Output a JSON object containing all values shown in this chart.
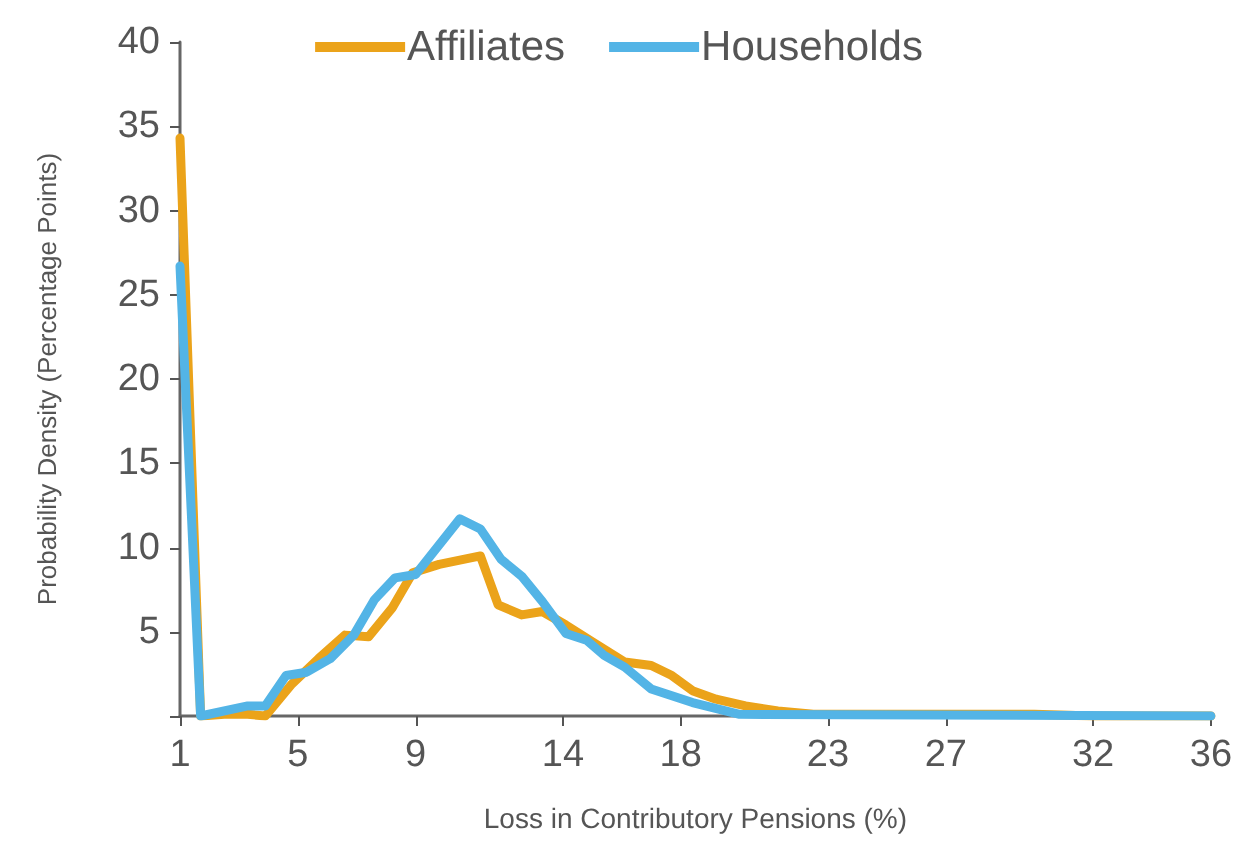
{
  "chart_data": {
    "type": "line",
    "xlabel": "Loss in Contributory Pensions (%)",
    "ylabel": "Probability Density (Percentage Points)",
    "series": [
      {
        "name": "Affiliates",
        "color": "#eba31a",
        "x": [
          1,
          1.7,
          2.5,
          3.3,
          3.9,
          4.8,
          5.7,
          6.6,
          7.4,
          8.2,
          8.9,
          9.8,
          11.2,
          11.8,
          12.6,
          13.3,
          14.1,
          15.0,
          16.1,
          17.0,
          17.7,
          18.4,
          19.2,
          20.2,
          21.3,
          22.5,
          24,
          26,
          28,
          30,
          32,
          33,
          36
        ],
        "values": [
          34.3,
          0,
          0.1,
          0.1,
          0,
          1.9,
          3.4,
          4.8,
          4.7,
          6.4,
          8.5,
          9.0,
          9.5,
          6.6,
          6.0,
          6.2,
          5.4,
          4.4,
          3.2,
          3.0,
          2.4,
          1.5,
          1.0,
          0.6,
          0.3,
          0.1,
          0.1,
          0.1,
          0.1,
          0.1,
          0,
          0,
          0
        ]
      },
      {
        "name": "Households",
        "color": "#53b4e6",
        "x": [
          1,
          1.7,
          3.3,
          3.9,
          4.6,
          5.3,
          6.1,
          6.9,
          7.6,
          8.3,
          9.0,
          10.5,
          11.2,
          11.9,
          12.6,
          13.3,
          14.1,
          14.8,
          15.4,
          16.1,
          17.0,
          18.4,
          20.0,
          36
        ],
        "values": [
          26.7,
          0,
          0.6,
          0.6,
          2.4,
          2.6,
          3.4,
          4.8,
          6.9,
          8.2,
          8.4,
          11.7,
          11.1,
          9.3,
          8.3,
          6.8,
          4.9,
          4.5,
          3.6,
          2.9,
          1.6,
          0.8,
          0.1,
          0
        ]
      }
    ],
    "xlim": [
      1,
      36
    ],
    "xticks": [
      1,
      5,
      9,
      14,
      18,
      23,
      27,
      32,
      36
    ],
    "ylim": [
      0,
      40
    ],
    "yticks": [
      {
        "value": 0,
        "label": null
      },
      5,
      10,
      15,
      20,
      25,
      30,
      35,
      40
    ],
    "grid": false,
    "legend": "top",
    "marker": "none",
    "line_style": "solid"
  }
}
